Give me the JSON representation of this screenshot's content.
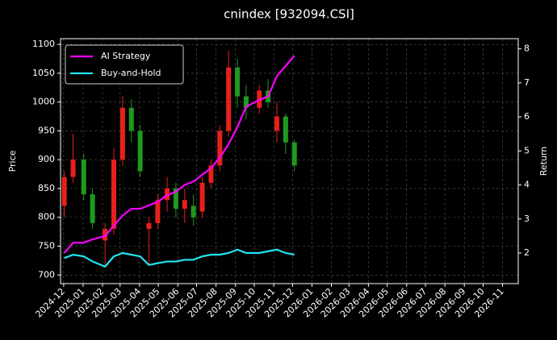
{
  "chart_data": {
    "type": "candlestick",
    "title": "cnindex [932094.CSI]",
    "ylabel": "Price",
    "y2label": "Return",
    "x": [
      "2024-12-02",
      "2024-12-16",
      "2025-01-02",
      "2025-01-16",
      "2025-02-05",
      "2025-02-19",
      "2025-03-05",
      "2025-03-19",
      "2025-04-02",
      "2025-04-16",
      "2025-04-30",
      "2025-05-15",
      "2025-05-29",
      "2025-06-12",
      "2025-06-26",
      "2025-07-10",
      "2025-07-24",
      "2025-08-07",
      "2025-08-21",
      "2025-09-04",
      "2025-09-18",
      "2025-10-09",
      "2025-10-23",
      "2025-11-06",
      "2025-11-20",
      "2025-12-04"
    ],
    "open": [
      820,
      870,
      900,
      840,
      760,
      780,
      900,
      990,
      950,
      780,
      790,
      830,
      850,
      815,
      820,
      810,
      860,
      890,
      950,
      1060,
      1010,
      990,
      1020,
      950,
      975,
      930
    ],
    "high": [
      880,
      945,
      910,
      850,
      790,
      920,
      1010,
      1005,
      960,
      800,
      840,
      870,
      860,
      850,
      840,
      870,
      900,
      960,
      1090,
      1075,
      1030,
      1030,
      1040,
      1000,
      980,
      935
    ],
    "low": [
      800,
      860,
      830,
      780,
      715,
      770,
      890,
      930,
      870,
      720,
      780,
      810,
      800,
      790,
      785,
      800,
      850,
      880,
      940,
      990,
      970,
      980,
      990,
      930,
      910,
      880
    ],
    "close": [
      870,
      900,
      840,
      790,
      780,
      900,
      990,
      950,
      880,
      790,
      830,
      850,
      815,
      830,
      800,
      860,
      890,
      950,
      1060,
      1010,
      990,
      1020,
      1000,
      975,
      930,
      890
    ],
    "up_color": "#e8201c",
    "down_color": "#1f9a1f",
    "series": [
      {
        "name": "AI Strategy",
        "color": "#ff00ff",
        "axis": "y2",
        "values": [
          2.0,
          2.3,
          2.3,
          2.4,
          2.5,
          2.8,
          3.1,
          3.3,
          3.3,
          3.4,
          3.5,
          3.7,
          3.8,
          4.0,
          4.1,
          4.3,
          4.5,
          4.8,
          5.2,
          5.7,
          6.3,
          6.5,
          6.6,
          7.2,
          7.5,
          7.8
        ]
      },
      {
        "name": "Buy-and-Hold",
        "color": "#22e5f0",
        "axis": "y2",
        "values": [
          1.85,
          1.95,
          1.9,
          1.75,
          1.6,
          1.9,
          2.0,
          1.95,
          1.9,
          1.65,
          1.7,
          1.75,
          1.75,
          1.8,
          1.8,
          1.9,
          1.95,
          1.95,
          2.0,
          2.1,
          2.0,
          2.0,
          2.05,
          2.1,
          2.0,
          1.95
        ]
      }
    ],
    "xlim": [
      "2024-11-26",
      "2026-11-26"
    ],
    "xticks": [
      "2024-12",
      "2025-01",
      "2025-02",
      "2025-03",
      "2025-04",
      "2025-05",
      "2025-06",
      "2025-07",
      "2025-08",
      "2025-09",
      "2025-10",
      "2025-11",
      "2025-12",
      "2026-01",
      "2026-02",
      "2026-03",
      "2026-04",
      "2026-05",
      "2026-06",
      "2026-07",
      "2026-08",
      "2026-09",
      "2026-10",
      "2026-11"
    ],
    "ylim": [
      685,
      1110
    ],
    "yticks": [
      700,
      750,
      800,
      850,
      900,
      950,
      1000,
      1050,
      1100
    ],
    "y2lim": [
      1.1,
      8.3
    ],
    "y2ticks": [
      2,
      3,
      4,
      5,
      6,
      7,
      8
    ],
    "grid": true,
    "legend": "upper left"
  }
}
